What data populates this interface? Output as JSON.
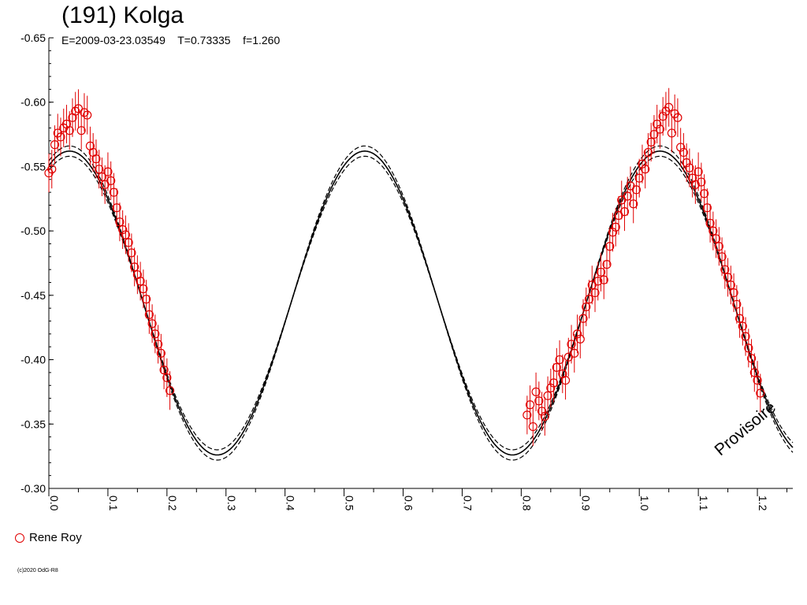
{
  "header": {
    "title": "(191) Kolga",
    "subtitle": "E=2009-03-23.03549    T=0.73335    f=1.260"
  },
  "watermark": "Provisoire",
  "copyright": "(c)2020 OdG-R8",
  "legend": {
    "items": [
      {
        "label": "Rene Roy",
        "marker": "open-circle",
        "color": "#e00000"
      }
    ]
  },
  "colors": {
    "data": "#e00000",
    "curve": "#000000",
    "axis": "#000000"
  },
  "chart_data": {
    "type": "scatter",
    "title": "(191) Kolga",
    "xlabel": "",
    "ylabel": "",
    "xlim": [
      0.0,
      1.26
    ],
    "ylim": [
      -0.65,
      -0.3
    ],
    "y_inverted": true,
    "grid": false,
    "legend_position": "bottom-left",
    "xticks": [
      "0.0",
      "0.1",
      "0.2",
      "0.3",
      "0.4",
      "0.5",
      "0.6",
      "0.7",
      "0.8",
      "0.9",
      "1.0",
      "1.1",
      "1.2"
    ],
    "yticks": [
      "-0.65",
      "-0.60",
      "-0.55",
      "-0.50",
      "-0.45",
      "-0.40",
      "-0.35",
      "-0.30"
    ],
    "model_curve": {
      "type": "line",
      "period_phase": 0.5,
      "min_mag": -0.562,
      "max_mag": -0.326,
      "peak_phase": 0.035,
      "envelope_offset": 0.004
    },
    "series": [
      {
        "name": "Rene Roy",
        "marker": "open-circle",
        "error": 0.015,
        "points": [
          [
            0.0,
            -0.545
          ],
          [
            0.005,
            -0.548
          ],
          [
            0.01,
            -0.567
          ],
          [
            0.015,
            -0.576
          ],
          [
            0.02,
            -0.573
          ],
          [
            0.025,
            -0.58
          ],
          [
            0.03,
            -0.583
          ],
          [
            0.035,
            -0.578
          ],
          [
            0.04,
            -0.588
          ],
          [
            0.045,
            -0.593
          ],
          [
            0.05,
            -0.595
          ],
          [
            0.055,
            -0.578
          ],
          [
            0.06,
            -0.592
          ],
          [
            0.065,
            -0.59
          ],
          [
            0.07,
            -0.566
          ],
          [
            0.075,
            -0.561
          ],
          [
            0.08,
            -0.556
          ],
          [
            0.085,
            -0.548
          ],
          [
            0.09,
            -0.542
          ],
          [
            0.095,
            -0.536
          ],
          [
            0.1,
            -0.546
          ],
          [
            0.105,
            -0.539
          ],
          [
            0.11,
            -0.53
          ],
          [
            0.115,
            -0.518
          ],
          [
            0.12,
            -0.507
          ],
          [
            0.125,
            -0.501
          ],
          [
            0.13,
            -0.497
          ],
          [
            0.135,
            -0.491
          ],
          [
            0.14,
            -0.483
          ],
          [
            0.145,
            -0.472
          ],
          [
            0.15,
            -0.466
          ],
          [
            0.155,
            -0.461
          ],
          [
            0.16,
            -0.455
          ],
          [
            0.165,
            -0.447
          ],
          [
            0.17,
            -0.435
          ],
          [
            0.175,
            -0.428
          ],
          [
            0.18,
            -0.42
          ],
          [
            0.185,
            -0.412
          ],
          [
            0.19,
            -0.405
          ],
          [
            0.195,
            -0.392
          ],
          [
            0.2,
            -0.386
          ],
          [
            0.205,
            -0.376
          ],
          [
            0.81,
            -0.357
          ],
          [
            0.815,
            -0.365
          ],
          [
            0.82,
            -0.348
          ],
          [
            0.825,
            -0.375
          ],
          [
            0.83,
            -0.368
          ],
          [
            0.835,
            -0.36
          ],
          [
            0.84,
            -0.356
          ],
          [
            0.845,
            -0.372
          ],
          [
            0.85,
            -0.378
          ],
          [
            0.855,
            -0.382
          ],
          [
            0.86,
            -0.394
          ],
          [
            0.865,
            -0.4
          ],
          [
            0.87,
            -0.389
          ],
          [
            0.875,
            -0.384
          ],
          [
            0.88,
            -0.402
          ],
          [
            0.885,
            -0.412
          ],
          [
            0.89,
            -0.405
          ],
          [
            0.895,
            -0.42
          ],
          [
            0.9,
            -0.416
          ],
          [
            0.905,
            -0.432
          ],
          [
            0.91,
            -0.441
          ],
          [
            0.915,
            -0.447
          ],
          [
            0.92,
            -0.458
          ],
          [
            0.925,
            -0.452
          ],
          [
            0.93,
            -0.461
          ],
          [
            0.935,
            -0.468
          ],
          [
            0.94,
            -0.462
          ],
          [
            0.945,
            -0.474
          ],
          [
            0.95,
            -0.488
          ],
          [
            0.955,
            -0.499
          ],
          [
            0.96,
            -0.503
          ],
          [
            0.965,
            -0.512
          ],
          [
            0.97,
            -0.524
          ],
          [
            0.975,
            -0.515
          ],
          [
            0.98,
            -0.527
          ],
          [
            0.985,
            -0.535
          ],
          [
            0.99,
            -0.521
          ],
          [
            0.995,
            -0.532
          ],
          [
            1.0,
            -0.541
          ],
          [
            1.005,
            -0.552
          ],
          [
            1.01,
            -0.548
          ],
          [
            1.015,
            -0.561
          ],
          [
            1.02,
            -0.569
          ],
          [
            1.025,
            -0.575
          ],
          [
            1.03,
            -0.583
          ],
          [
            1.035,
            -0.579
          ],
          [
            1.04,
            -0.589
          ],
          [
            1.045,
            -0.593
          ],
          [
            1.05,
            -0.596
          ],
          [
            1.055,
            -0.576
          ],
          [
            1.06,
            -0.591
          ],
          [
            1.065,
            -0.588
          ],
          [
            1.07,
            -0.565
          ],
          [
            1.075,
            -0.561
          ],
          [
            1.08,
            -0.553
          ],
          [
            1.085,
            -0.549
          ],
          [
            1.09,
            -0.541
          ],
          [
            1.095,
            -0.536
          ],
          [
            1.1,
            -0.546
          ],
          [
            1.105,
            -0.538
          ],
          [
            1.11,
            -0.529
          ],
          [
            1.115,
            -0.518
          ],
          [
            1.12,
            -0.506
          ],
          [
            1.125,
            -0.5
          ],
          [
            1.13,
            -0.494
          ],
          [
            1.135,
            -0.488
          ],
          [
            1.14,
            -0.48
          ],
          [
            1.145,
            -0.47
          ],
          [
            1.15,
            -0.464
          ],
          [
            1.155,
            -0.458
          ],
          [
            1.16,
            -0.452
          ],
          [
            1.165,
            -0.443
          ],
          [
            1.17,
            -0.432
          ],
          [
            1.175,
            -0.426
          ],
          [
            1.18,
            -0.418
          ],
          [
            1.185,
            -0.409
          ],
          [
            1.19,
            -0.401
          ],
          [
            1.195,
            -0.39
          ],
          [
            1.2,
            -0.384
          ],
          [
            1.205,
            -0.374
          ]
        ]
      }
    ]
  }
}
